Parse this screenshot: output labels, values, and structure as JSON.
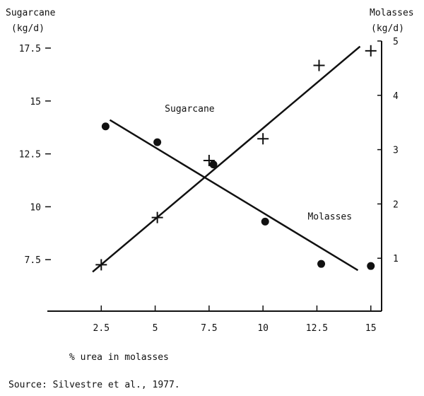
{
  "chart_data": {
    "type": "scatter",
    "title": "",
    "xlabel": "% urea in molasses",
    "y_left_label_line1": "Sugarcane",
    "y_left_label_line2": "(kg/d)",
    "y_right_label_line1": "Molasses",
    "y_right_label_line2": "(kg/d)",
    "xlim": [
      0,
      15.5
    ],
    "ylim_left": [
      5,
      17.5
    ],
    "ylim_right": [
      0,
      5
    ],
    "x_ticks": [
      2.5,
      5,
      7.5,
      10,
      12.5,
      15
    ],
    "x_tick_labels": [
      "2.5",
      "5",
      "7.5",
      "10",
      "12.5",
      "15"
    ],
    "y_left_ticks": [
      7.5,
      10,
      12.5,
      15,
      17.5
    ],
    "y_left_tick_labels": [
      "7.5",
      "10",
      "12.5",
      "15",
      "17.5"
    ],
    "y_right_ticks": [
      1,
      2,
      3,
      4,
      5
    ],
    "y_right_tick_labels": [
      "1",
      "2",
      "3",
      "4",
      "5"
    ],
    "grid": false,
    "series": [
      {
        "marker": "circle",
        "axis": "left",
        "points": [
          {
            "x": 2.7,
            "y": 13.8
          },
          {
            "x": 5.1,
            "y": 13.05
          },
          {
            "x": 7.7,
            "y": 12.0
          },
          {
            "x": 10.1,
            "y": 9.3
          },
          {
            "x": 12.7,
            "y": 7.3
          },
          {
            "x": 15.0,
            "y": 7.2
          }
        ],
        "fit_line": [
          {
            "x": 2.9,
            "y": 14.1
          },
          {
            "x": 14.4,
            "y": 7.0
          }
        ]
      },
      {
        "marker": "plus",
        "axis": "right",
        "points": [
          {
            "x": 2.5,
            "y": 0.88
          },
          {
            "x": 5.1,
            "y": 1.75
          },
          {
            "x": 7.5,
            "y": 2.8
          },
          {
            "x": 10.0,
            "y": 3.2
          },
          {
            "x": 12.6,
            "y": 4.55
          },
          {
            "x": 15.0,
            "y": 4.82
          }
        ],
        "fit_line": [
          {
            "x": 2.1,
            "y": 0.75
          },
          {
            "x": 14.5,
            "y": 4.9
          }
        ]
      }
    ],
    "annotations": [
      {
        "text": "Sugarcane",
        "x": 6.6,
        "y": 14.5
      },
      {
        "text": "Molasses",
        "x": 13.1,
        "y": 9.4
      }
    ]
  },
  "source": "Source:  Silvestre et al., 1977."
}
